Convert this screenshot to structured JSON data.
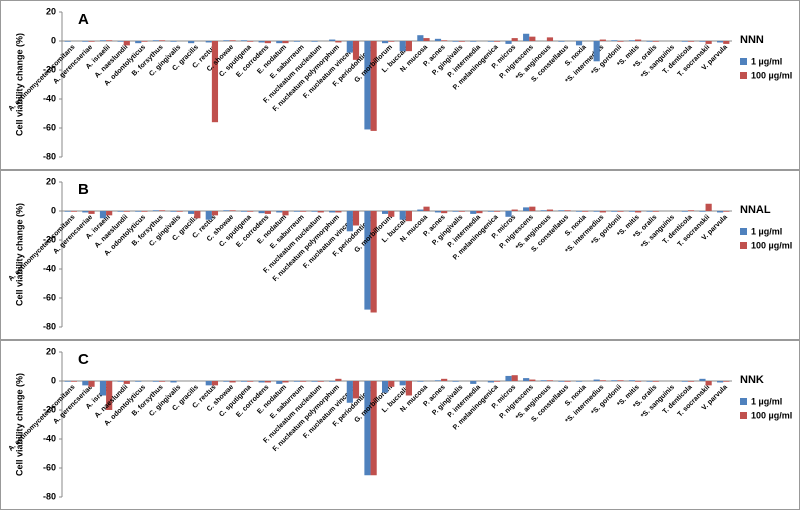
{
  "chart_data": [
    {
      "type": "bar",
      "label": "A",
      "legend_title": "NNN",
      "y_label": "Cell viability change (%)",
      "categories": [
        "A. actinomycetemcomitans",
        "A. gerencseriae",
        "A. israelii",
        "A. naeslundii",
        "A. odontolyticus",
        "B. forsythus",
        "C. gingivalis",
        "C. gracilis",
        "C. rectus",
        "C. showae",
        "C. sputigena",
        "E. corrodens",
        "E. nodatum",
        "E. saburreum",
        "F. nucleatum nucleatum",
        "F. nucleatum polymorphum",
        "F. nucleatum vincentii",
        "F. periodonticum",
        "G. morbillorum",
        "L. buccalis",
        "N. mucosa",
        "P. acnes",
        "P. gingivalis",
        "P. intermedia",
        "P. melaninogenica",
        "P. micros",
        "P. nigrescens",
        "*S. anginosus",
        "S. constellatus",
        "S. noxia",
        "*S. intermedius",
        "*S. gordonii",
        "*S. mitis",
        "*S. oralis",
        "*S. sanguinis",
        "T. denticola",
        "T. socranskii",
        "V. parvula"
      ],
      "series": [
        {
          "name": "1 µg/ml",
          "color": "#4f81bd",
          "values": [
            -0.5,
            -0.5,
            0.5,
            -0.5,
            -1.5,
            0.5,
            -0.5,
            -1.5,
            -1,
            0.5,
            0.5,
            -1,
            -1.5,
            -0.5,
            -0.5,
            1,
            -8,
            -61,
            -1.5,
            -7,
            4,
            1.5,
            -0.5,
            -0.5,
            -0.5,
            -2,
            5,
            0,
            -0.5,
            -3,
            -14,
            0.5,
            0.5,
            -0.5,
            0,
            -0.5,
            -0.5,
            -1
          ]
        },
        {
          "name": "100 µg/ml",
          "color": "#c0504d",
          "values": [
            0,
            -0.5,
            0.5,
            -3,
            -0.5,
            0.5,
            0,
            0,
            -56,
            0.5,
            -0.5,
            -1.5,
            -1.5,
            0,
            0,
            -1,
            -13,
            -62,
            -0.5,
            -7,
            2,
            0.5,
            -0.5,
            0,
            -0.5,
            2,
            3,
            2.5,
            0,
            0,
            1,
            -0.5,
            1,
            -0.5,
            0,
            -0.5,
            -2,
            -2
          ]
        }
      ],
      "ylim": [
        -80,
        20
      ],
      "yticks": [
        20,
        0,
        -20,
        -40,
        -60,
        -80
      ],
      "grid": false,
      "legend": "right"
    },
    {
      "type": "bar",
      "label": "B",
      "legend_title": "NNAL",
      "y_label": "Cell viability change (%)",
      "categories": [
        "A. actinomycetemcomitans",
        "A. gerencseriae",
        "A. israelii",
        "A. naeslundii",
        "A. odontolyticus",
        "B. forsythus",
        "C. gingivalis",
        "C. gracilis",
        "C. rectus",
        "C. showae",
        "C. sputigena",
        "E. corrodens",
        "E. nodatum",
        "E. saburreum",
        "F. nucleatum nucleatum",
        "F. nucleatum polymorphum",
        "F. nucleatum vincentii",
        "F. periodonticum",
        "G. morbillorum",
        "L. buccalis",
        "N. mucosa",
        "P. acnes",
        "P. gingivalis",
        "P. intermedia",
        "P. melaninogenica",
        "P. micros",
        "P. nigrescens",
        "*S. anginosus",
        "S. constellatus",
        "S. noxia",
        "*S. intermedius",
        "*S. gordonii",
        "*S. mitis",
        "*S. oralis",
        "*S. sanguinis",
        "T. denticola",
        "T. socranskii",
        "V. parvula"
      ],
      "series": [
        {
          "name": "1 µg/ml",
          "color": "#4f81bd",
          "values": [
            -0.5,
            -1,
            -5,
            -0.5,
            -0.5,
            0.5,
            -0.5,
            -2,
            -6,
            0.5,
            -0.5,
            -1.5,
            -1,
            -0.5,
            -0.5,
            -1,
            -14,
            -68,
            -2,
            -6,
            1,
            -1,
            -0.5,
            -2,
            -0.5,
            -4,
            2.5,
            0.5,
            0.5,
            -0.5,
            -0.5,
            -0.5,
            -0.5,
            -0.5,
            0,
            -0.5,
            -0.5,
            -1
          ]
        },
        {
          "name": "100 µg/ml",
          "color": "#c0504d",
          "values": [
            -0.5,
            -2,
            -3,
            -0.5,
            -0.5,
            0.5,
            -0.5,
            -5,
            -3,
            0.5,
            -0.5,
            -2,
            -3,
            -0.5,
            -1,
            -1,
            -10,
            -70,
            -4,
            -7,
            3,
            -1.5,
            -0.5,
            -1.5,
            -0.5,
            1,
            3,
            1,
            0.5,
            -0.5,
            -1,
            -0.5,
            -1,
            -0.5,
            0,
            0.5,
            5,
            -0.5
          ]
        }
      ],
      "ylim": [
        -80,
        20
      ],
      "yticks": [
        20,
        0,
        -20,
        -40,
        -60,
        -80
      ],
      "grid": false,
      "legend": "right"
    },
    {
      "type": "bar",
      "label": "C",
      "legend_title": "NNK",
      "y_label": "Cell viability change (%)",
      "categories": [
        "A. actinomycetemcomitans",
        "A. gerencseriae",
        "A. israelii",
        "A. naeslundii",
        "A. odontolyticus",
        "B. forsythus",
        "C. gingivalis",
        "C. gracilis",
        "C. rectus",
        "C. showae",
        "C. sputigena",
        "E. corrodens",
        "E. nodatum",
        "E. saburreum",
        "F. nucleatum nucleatum",
        "F. nucleatum polymorphum",
        "F. nucleatum vincentii",
        "F. periodonticum",
        "G. morbillorum",
        "L. buccalis",
        "N. mucosa",
        "P. acnes",
        "P. gingivalis",
        "P. intermedia",
        "P. melaninogenica",
        "P. micros",
        "P. nigrescens",
        "*S. anginosus",
        "S. constellatus",
        "S. noxia",
        "*S. intermedius",
        "*S. gordonii",
        "*S. mitis",
        "*S. oralis",
        "*S. sanguinis",
        "T. denticola",
        "T. socranskii",
        "V. parvula"
      ],
      "series": [
        {
          "name": "1 µg/ml",
          "color": "#4f81bd",
          "values": [
            -0.5,
            -3,
            -10,
            -0.5,
            -0.5,
            -0.5,
            -1,
            0,
            -3,
            -0.5,
            -0.5,
            -1,
            -2,
            -0.5,
            -0.5,
            -0.5,
            -15,
            -65,
            -8,
            -3,
            -0.5,
            0.5,
            -0.5,
            -2,
            -1,
            3.5,
            2,
            0.5,
            -0.5,
            -0.5,
            1,
            0.5,
            0.5,
            -0.5,
            0,
            -0.5,
            1.5,
            -1
          ]
        },
        {
          "name": "100 µg/ml",
          "color": "#c0504d",
          "values": [
            -0.5,
            -4,
            -20,
            -2,
            0,
            -0.5,
            0,
            0,
            -3,
            -1,
            -0.5,
            -1,
            -1,
            -0.5,
            -0.5,
            1.5,
            -12,
            -65,
            -4,
            -10,
            0,
            1.5,
            0,
            0,
            -0.5,
            4,
            1,
            0.5,
            -0.5,
            0,
            0.5,
            0.5,
            -0.5,
            -0.5,
            0,
            -0.5,
            -3,
            -0.5
          ]
        }
      ],
      "ylim": [
        -80,
        20
      ],
      "yticks": [
        20,
        0,
        -20,
        -40,
        -60,
        -80
      ],
      "grid": false,
      "legend": "right"
    }
  ]
}
